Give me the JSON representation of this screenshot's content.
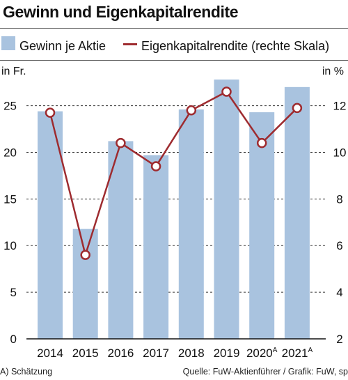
{
  "title": "Gewinn und Eigenkapitalrendite",
  "legend": {
    "bar_label": "Gewinn je Aktie",
    "line_label": "Eigenkapitalrendite (rechte Skala)"
  },
  "units": {
    "left": "in Fr.",
    "right": "in %"
  },
  "footer": {
    "note": "A) Schätzung",
    "source": "Quelle: FuW-Aktienführer / Grafik: FuW, sp"
  },
  "colors": {
    "bar": "#a9c3df",
    "line": "#9e2b2f",
    "grid": "#333333"
  },
  "chart_data": {
    "type": "bar",
    "categories": [
      "2014",
      "2015",
      "2016",
      "2017",
      "2018",
      "2019",
      "2020A",
      "2021A"
    ],
    "category_labels": [
      {
        "year": "2014",
        "sup": ""
      },
      {
        "year": "2015",
        "sup": ""
      },
      {
        "year": "2016",
        "sup": ""
      },
      {
        "year": "2017",
        "sup": ""
      },
      {
        "year": "2018",
        "sup": ""
      },
      {
        "year": "2019",
        "sup": ""
      },
      {
        "year": "2020",
        "sup": "A"
      },
      {
        "year": "2021",
        "sup": "A"
      }
    ],
    "series": [
      {
        "name": "Gewinn je Aktie",
        "type": "bar",
        "axis": "left",
        "values": [
          24.4,
          11.8,
          21.2,
          19.7,
          24.6,
          27.8,
          24.3,
          27.0
        ]
      },
      {
        "name": "Eigenkapitalrendite (rechte Skala)",
        "type": "line",
        "axis": "right",
        "values": [
          11.7,
          5.6,
          10.4,
          9.4,
          11.8,
          12.6,
          10.4,
          11.9
        ]
      }
    ],
    "y_left": {
      "label": "in Fr.",
      "ylim": [
        0,
        30
      ],
      "ticks": [
        0,
        5,
        10,
        15,
        20,
        25
      ]
    },
    "y_right": {
      "label": "in %",
      "ylim": [
        2,
        14
      ],
      "ticks": [
        2,
        4,
        6,
        8,
        10,
        12
      ]
    },
    "grid": "dashed horizontal"
  }
}
